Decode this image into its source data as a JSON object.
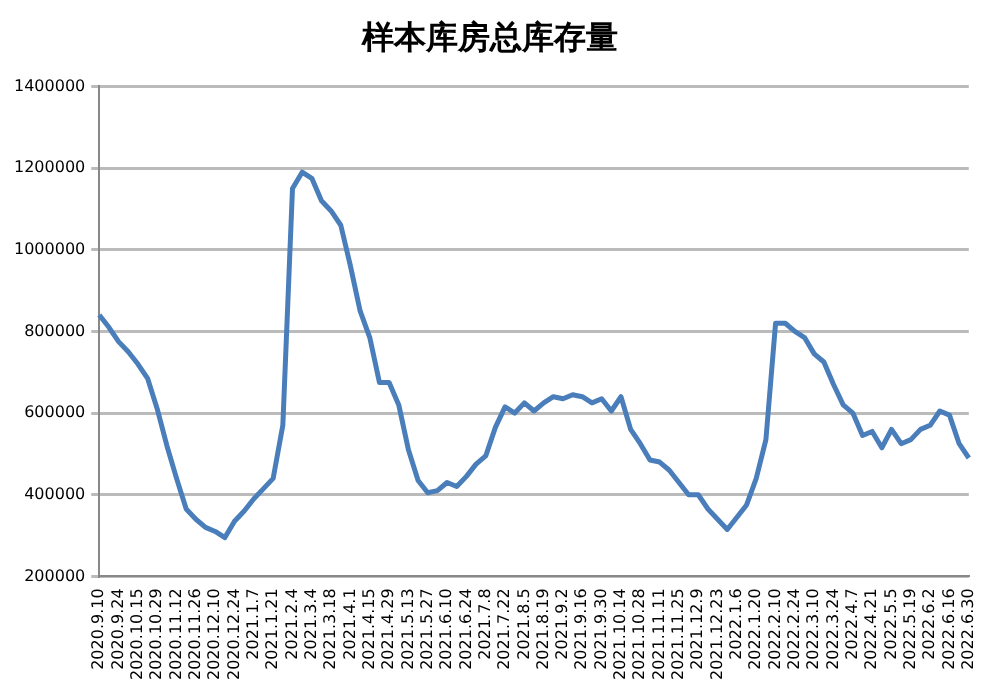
{
  "chart_data": {
    "type": "line",
    "title": "样本库房总库存量",
    "categories": [
      "2020.9.10",
      null,
      "2020.9.24",
      null,
      "2020.10.15",
      null,
      "2020.10.29",
      null,
      "2020.11.12",
      null,
      "2020.11.26",
      null,
      "2020.12.10",
      null,
      "2020.12.24",
      null,
      "2021.1.7",
      null,
      "2021.1.21",
      null,
      "2021.2.4",
      null,
      "2021.3.4",
      null,
      "2021.3.18",
      null,
      "2021.4.1",
      null,
      "2021.4.15",
      null,
      "2021.4.29",
      null,
      "2021.5.13",
      null,
      "2021.5.27",
      null,
      "2021.6.10",
      null,
      "2021.6.24",
      null,
      "2021.7.8",
      null,
      "2021.7.22",
      null,
      "2021.8.5",
      null,
      "2021.8.19",
      null,
      "2021.9.2",
      null,
      "2021.9.16",
      null,
      "2021.9.30",
      null,
      "2021.10.14",
      null,
      "2021.10.28",
      null,
      "2021.11.11",
      null,
      "2021.11.25",
      null,
      "2021.12.9",
      null,
      "2021.12.23",
      null,
      "2022.1.6",
      null,
      "2022.1.20",
      null,
      "2022.2.10",
      null,
      "2022.2.24",
      null,
      "2022.3.10",
      null,
      "2022.3.24",
      null,
      "2022.4.7",
      null,
      "2022.4.21",
      null,
      "2022.5.5",
      null,
      "2022.5.19",
      null,
      "2022.6.2",
      null,
      "2022.6.16",
      null,
      "2022.6.30"
    ],
    "series": [
      {
        "color": "#4a7ebb",
        "values": [
          840000,
          810000,
          775000,
          750000,
          720000,
          685000,
          610000,
          520000,
          440000,
          365000,
          340000,
          320000,
          310000,
          295000,
          335000,
          360000,
          390000,
          415000,
          440000,
          570000,
          1150000,
          1190000,
          1175000,
          1120000,
          1095000,
          1060000,
          960000,
          850000,
          785000,
          675000,
          675000,
          620000,
          510000,
          435000,
          405000,
          410000,
          430000,
          420000,
          445000,
          475000,
          495000,
          565000,
          615000,
          600000,
          625000,
          605000,
          625000,
          640000,
          635000,
          645000,
          640000,
          625000,
          635000,
          605000,
          640000,
          560000,
          525000,
          485000,
          480000,
          460000,
          430000,
          400000,
          400000,
          365000,
          340000,
          315000,
          345000,
          375000,
          440000,
          535000,
          820000,
          820000,
          800000,
          785000,
          745000,
          725000,
          670000,
          620000,
          600000,
          545000,
          555000,
          515000,
          560000,
          525000,
          535000,
          560000,
          570000,
          605000,
          595000,
          525000,
          490000
        ]
      }
    ],
    "ylim": [
      200000,
      1400000
    ],
    "yticks": [
      200000,
      400000,
      600000,
      800000,
      1000000,
      1200000,
      1400000
    ],
    "grid": "y",
    "legend": false,
    "marker": "none",
    "line_style": "solid"
  }
}
